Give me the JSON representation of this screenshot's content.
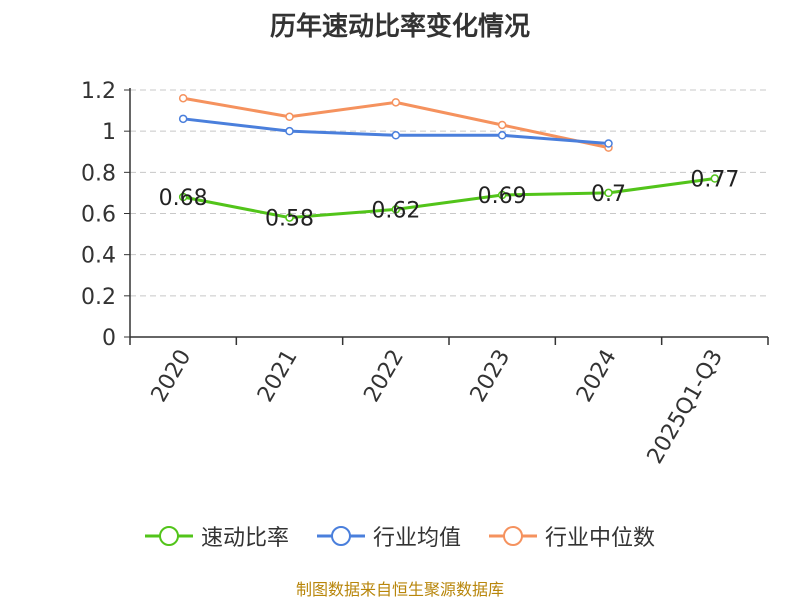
{
  "chart_data": {
    "type": "line",
    "title": "历年速动比率变化情况",
    "categories": [
      "2020",
      "2021",
      "2022",
      "2023",
      "2024",
      "2025Q1-Q3"
    ],
    "yticks": [
      "0",
      "0.2",
      "0.4",
      "0.6",
      "0.8",
      "1",
      "1.2"
    ],
    "ylim": [
      0,
      1.2
    ],
    "grid": true,
    "legend_position": "bottom",
    "series": [
      {
        "name": "速动比率",
        "color": "#52c41a",
        "values": [
          0.68,
          0.58,
          0.62,
          0.69,
          0.7,
          0.77
        ],
        "labels": [
          "0.68",
          "0.58",
          "0.62",
          "0.69",
          "0.7",
          "0.77"
        ],
        "show_labels": true
      },
      {
        "name": "行业均值",
        "color": "#4a7fdc",
        "values": [
          1.06,
          1.0,
          0.98,
          0.98,
          0.94,
          null
        ],
        "show_labels": false
      },
      {
        "name": "行业中位数",
        "color": "#f5925e",
        "values": [
          1.16,
          1.07,
          1.14,
          1.03,
          0.92,
          null
        ],
        "show_labels": false
      }
    ],
    "source": "制图数据来自恒生聚源数据库"
  }
}
